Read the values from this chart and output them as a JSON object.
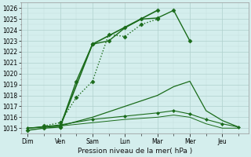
{
  "x_labels": [
    "Dim",
    "Ven",
    "Sam",
    "Lun",
    "Mar",
    "Mer",
    "Jeu"
  ],
  "x_ticks": [
    0,
    1,
    2,
    3,
    4,
    5,
    6
  ],
  "lines": [
    {
      "name": "main_solid_peak",
      "x": [
        0,
        0.5,
        1,
        1.5,
        2,
        2.5,
        3,
        3.5,
        4,
        4.5,
        5
      ],
      "y": [
        1014.8,
        1015.0,
        1015.1,
        1019.3,
        1022.7,
        1023.0,
        1024.2,
        1025.0,
        1025.1,
        1025.8,
        1023.0
      ],
      "style": "-",
      "marker": "D",
      "markersize": 2.5,
      "lw": 1.0,
      "has_marker": true
    },
    {
      "name": "dotted_rise",
      "x": [
        0.5,
        1,
        1.5,
        2,
        2.5,
        3,
        3.5,
        4
      ],
      "y": [
        1015.2,
        1015.5,
        1017.8,
        1019.3,
        1023.6,
        1023.4,
        1024.5,
        1025.0
      ],
      "style": ":",
      "marker": "D",
      "markersize": 2.5,
      "lw": 1.0,
      "has_marker": true
    },
    {
      "name": "triangle_solid",
      "x": [
        1,
        2,
        4
      ],
      "y": [
        1015.1,
        1022.7,
        1025.8
      ],
      "style": "-",
      "marker": "D",
      "markersize": 2.5,
      "lw": 1.2,
      "has_marker": true
    },
    {
      "name": "gentle_rise_line",
      "x": [
        0,
        1,
        2,
        3,
        4,
        4.5,
        5,
        5.5,
        6,
        6.5
      ],
      "y": [
        1015.0,
        1015.2,
        1016.0,
        1017.0,
        1018.0,
        1018.8,
        1019.3,
        1016.6,
        1015.7,
        1015.1
      ],
      "style": "-",
      "marker": null,
      "markersize": 0,
      "lw": 0.9,
      "has_marker": false
    },
    {
      "name": "flat_line1",
      "x": [
        0,
        1,
        2,
        3,
        4,
        4.5,
        5,
        5.5,
        6,
        6.5
      ],
      "y": [
        1015.0,
        1015.3,
        1015.8,
        1016.1,
        1016.4,
        1016.6,
        1016.3,
        1015.8,
        1015.4,
        1015.1
      ],
      "style": "-",
      "marker": "D",
      "markersize": 2.0,
      "lw": 0.8,
      "has_marker": true
    },
    {
      "name": "flat_line2",
      "x": [
        0,
        1,
        2,
        3,
        4,
        4.5,
        5,
        5.5,
        6,
        6.5
      ],
      "y": [
        1015.0,
        1015.2,
        1015.5,
        1015.8,
        1016.0,
        1016.2,
        1016.0,
        1015.4,
        1015.0,
        1015.0
      ],
      "style": "-",
      "marker": null,
      "markersize": 0,
      "lw": 0.7,
      "has_marker": false
    }
  ],
  "ylim": [
    1014.5,
    1026.5
  ],
  "xlim": [
    -0.2,
    6.8
  ],
  "yticks": [
    1015,
    1016,
    1017,
    1018,
    1019,
    1020,
    1021,
    1022,
    1023,
    1024,
    1025,
    1026
  ],
  "xlabel": "Pression niveau de la mer( hPa )",
  "line_color": "#1a6b1a",
  "bg_color": "#d4eeed",
  "grid_major_color": "#b0d0cc",
  "grid_minor_color": "#c2dedd",
  "tick_fontsize": 5.5,
  "label_fontsize": 6.5
}
